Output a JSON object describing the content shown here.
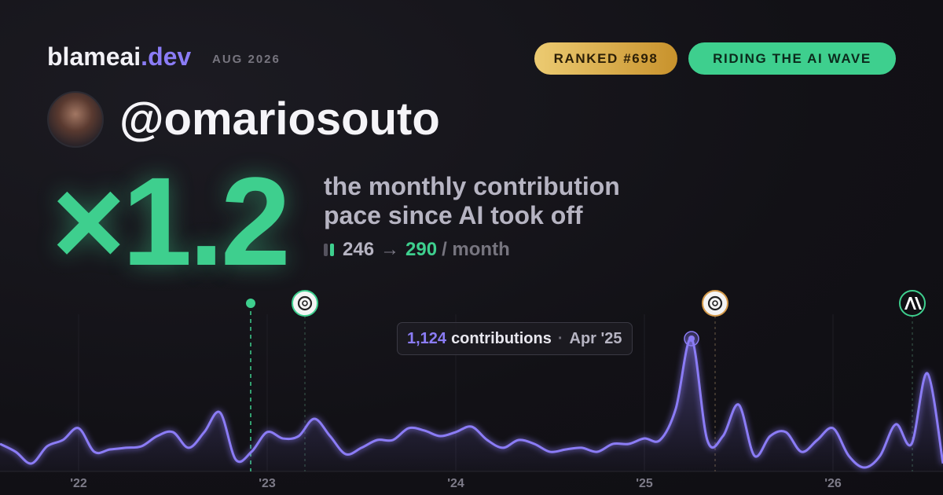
{
  "brand": {
    "name": "blameai",
    "tld": ".dev",
    "date": "AUG 2026"
  },
  "badges": [
    "RANKED #698",
    "RIDING THE AI WAVE"
  ],
  "user": {
    "handle": "@omariosouto"
  },
  "headline": {
    "multiplier": "×1.2",
    "line1": "the monthly contribution",
    "line2": "pace since AI took off",
    "before": "246",
    "arrow": "→",
    "after": "290",
    "unit": "/ month"
  },
  "chart_data": {
    "type": "line",
    "categories": [
      null,
      null,
      null,
      null,
      null,
      "'22",
      null,
      null,
      null,
      null,
      null,
      null,
      null,
      null,
      null,
      null,
      null,
      "'23",
      null,
      null,
      null,
      null,
      null,
      null,
      null,
      null,
      null,
      null,
      null,
      "'24",
      null,
      null,
      null,
      null,
      null,
      null,
      null,
      null,
      null,
      null,
      null,
      "'25",
      null,
      null,
      null,
      null,
      null,
      null,
      null,
      null,
      null,
      null,
      null,
      "'26",
      null,
      null,
      null,
      null,
      null,
      null,
      null
    ],
    "series": [
      {
        "name": "contributions",
        "color": "#8b7cf6",
        "values": [
          233,
          166,
          67,
          213,
          266,
          366,
          166,
          186,
          200,
          213,
          299,
          333,
          200,
          333,
          499,
          100,
          166,
          333,
          279,
          299,
          446,
          299,
          146,
          200,
          266,
          266,
          366,
          346,
          299,
          333,
          379,
          266,
          200,
          266,
          233,
          166,
          186,
          200,
          166,
          233,
          233,
          279,
          266,
          532,
          1124,
          266,
          299,
          565,
          133,
          299,
          333,
          166,
          266,
          366,
          133,
          33,
          133,
          399,
          233,
          831,
          67
        ]
      }
    ],
    "tooltip": {
      "value": "1,124",
      "text": "contributions",
      "sep": "·",
      "date": "Apr '25",
      "index": 44
    }
  }
}
